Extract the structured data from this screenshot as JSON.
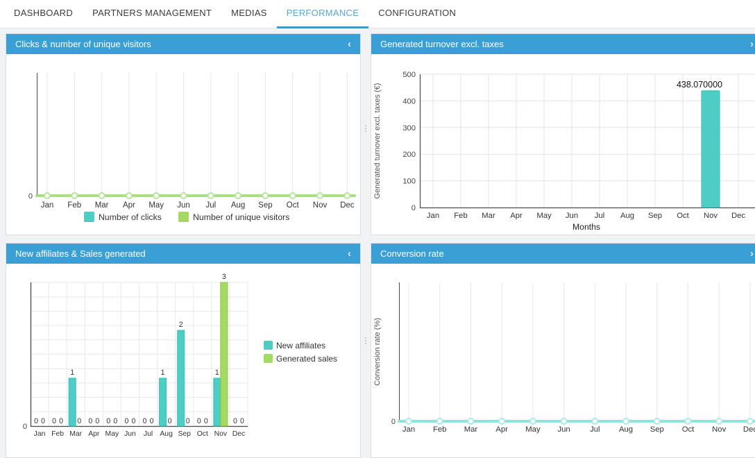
{
  "nav": {
    "tabs": [
      {
        "label": "DASHBOARD",
        "active": false
      },
      {
        "label": "PARTNERS MANAGEMENT",
        "active": false
      },
      {
        "label": "MEDIAS",
        "active": false
      },
      {
        "label": "PERFORMANCE",
        "active": true
      },
      {
        "label": "CONFIGURATION",
        "active": false
      }
    ]
  },
  "ui": {
    "drag_handle_glyph": "⋮"
  },
  "colors": {
    "header_blue": "#3a9fd5",
    "nav_active": "#55a7d4",
    "teal": "#4ECDC4",
    "teal_border": "#35beb4",
    "green": "#A4D962",
    "green_border": "#8bc440",
    "line_green": "#a9dd86",
    "line_green_marker": "#b9e49e",
    "line_teal": "#8fe5de",
    "line_teal_marker": "#abeae4",
    "grid": "#e7e7e7",
    "axis": "#4a4a4a",
    "tick_text": "#444444"
  },
  "panels": [
    {
      "title": "Clicks & number of unique visitors",
      "chevron": "‹"
    },
    {
      "title": "Generated turnover excl. taxes",
      "chevron": "›"
    },
    {
      "title": "New affiliates & Sales generated",
      "chevron": "‹"
    },
    {
      "title": "Conversion rate",
      "chevron": "›"
    }
  ],
  "chart_data": [
    {
      "type": "line",
      "title": "Clicks & number of unique visitors",
      "categories": [
        "Jan",
        "Feb",
        "Mar",
        "Apr",
        "May",
        "Jun",
        "Jul",
        "Aug",
        "Sep",
        "Oct",
        "Nov",
        "Dec"
      ],
      "series": [
        {
          "name": "Number of clicks",
          "color": "#4ECDC4",
          "values": [
            0,
            0,
            0,
            0,
            0,
            0,
            0,
            0,
            0,
            0,
            0,
            0
          ]
        },
        {
          "name": "Number of unique visitors",
          "color": "#A4D962",
          "values": [
            0,
            0,
            0,
            0,
            0,
            0,
            0,
            0,
            0,
            0,
            0,
            0
          ]
        }
      ],
      "yticks": [
        "0"
      ],
      "ylim": [
        0,
        1
      ],
      "legend_position": "bottom",
      "grid": "vertical-only"
    },
    {
      "type": "bar",
      "title": "Generated turnover excl. taxes",
      "categories": [
        "Jan",
        "Feb",
        "Mar",
        "Apr",
        "May",
        "Jun",
        "Jul",
        "Aug",
        "Sep",
        "Oct",
        "Nov",
        "Dec"
      ],
      "series": [
        {
          "name": "Generated turnover excl. taxes",
          "color": "#4ECDC4",
          "values": [
            0,
            0,
            0,
            0,
            0,
            0,
            0,
            0,
            0,
            0,
            438.07,
            0
          ]
        }
      ],
      "ylabel": "Generated turnover excl. taxes (€)",
      "xlabel": "Months",
      "ylim": [
        0,
        500
      ],
      "yticks": [
        500,
        400,
        300,
        200,
        100,
        0
      ],
      "annotations": [
        {
          "text": "438.070000",
          "category": "Nov"
        }
      ],
      "grid": "both"
    },
    {
      "type": "bar",
      "title": "New affiliates & Sales generated",
      "categories": [
        "Jan",
        "Feb",
        "Mar",
        "Apr",
        "May",
        "Jun",
        "Jul",
        "Aug",
        "Sep",
        "Oct",
        "Nov",
        "Dec"
      ],
      "series": [
        {
          "name": "New affiliates",
          "color": "#4ECDC4",
          "values": [
            0,
            0,
            1,
            0,
            0,
            0,
            0,
            1,
            2,
            0,
            1,
            0
          ]
        },
        {
          "name": "Generated sales",
          "color": "#A4D962",
          "values": [
            0,
            0,
            0,
            0,
            0,
            0,
            0,
            0,
            0,
            0,
            3,
            0
          ]
        }
      ],
      "ylim": [
        0,
        3
      ],
      "yticks": [
        "0"
      ],
      "data_labels": true,
      "legend_position": "right",
      "grid": "both"
    },
    {
      "type": "line",
      "title": "Conversion rate",
      "categories": [
        "Jan",
        "Feb",
        "Mar",
        "Apr",
        "May",
        "Jun",
        "Jul",
        "Aug",
        "Sep",
        "Oct",
        "Nov",
        "Dec"
      ],
      "series": [
        {
          "name": "Conversion rate (%)",
          "color": "#8fe5de",
          "values": [
            0,
            0,
            0,
            0,
            0,
            0,
            0,
            0,
            0,
            0,
            0,
            0
          ]
        }
      ],
      "ylabel": "Conversion rate (%)",
      "yticks": [
        "0"
      ],
      "ylim": [
        0,
        1
      ],
      "grid": "vertical-only"
    }
  ]
}
